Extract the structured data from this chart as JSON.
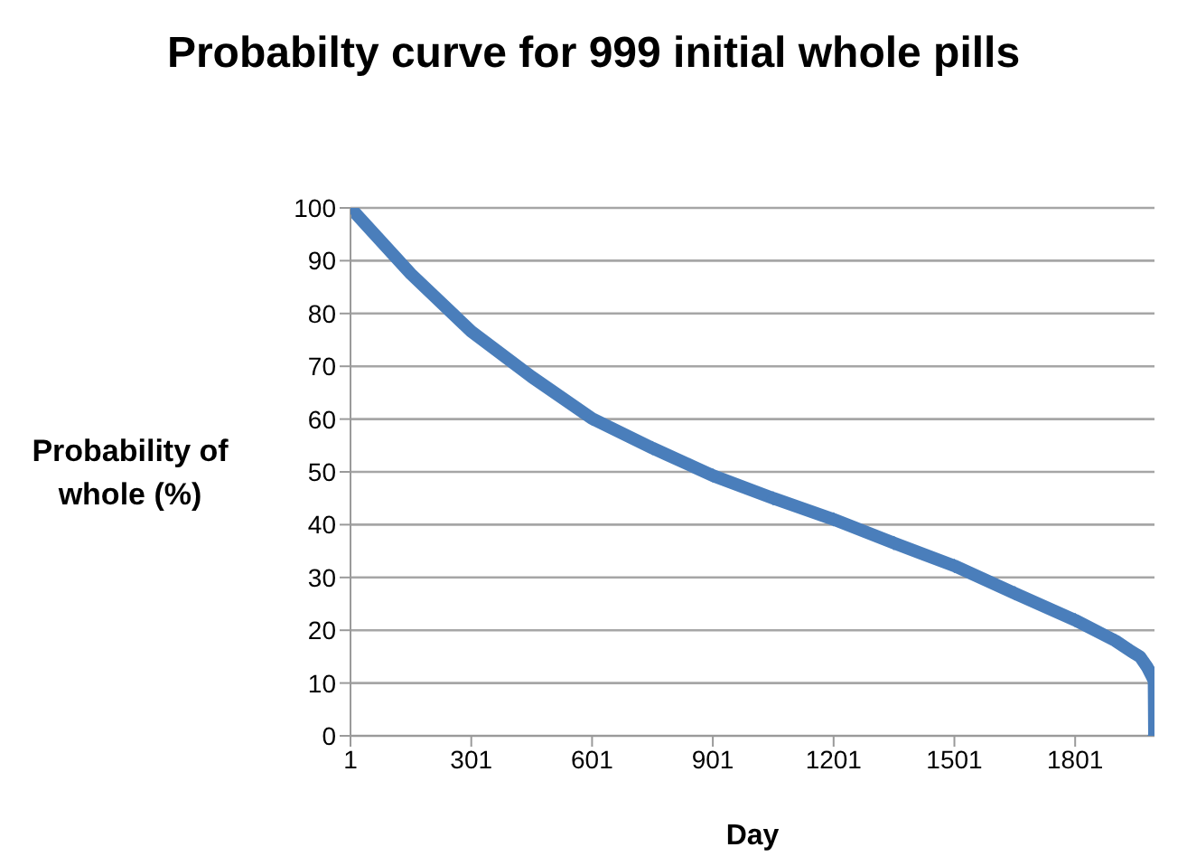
{
  "chart_data": {
    "type": "line",
    "title": "Probabilty curve for 999 initial whole pills",
    "xlabel": "Day",
    "ylabel": "Probability of whole (%)",
    "x": [
      1,
      151,
      301,
      451,
      601,
      751,
      901,
      1051,
      1201,
      1351,
      1501,
      1651,
      1801,
      1901,
      1940,
      1962,
      1980,
      1997,
      1998
    ],
    "series": [
      {
        "color": "#4a7ebb",
        "values": [
          100,
          87.5,
          76.6,
          68,
          60.1,
          54.5,
          49.3,
          45,
          41,
          36.5,
          32.2,
          27,
          21.9,
          18,
          16,
          15,
          13,
          10.5,
          0
        ]
      }
    ],
    "xlim": [
      1,
      1998
    ],
    "xticks": [
      1,
      301,
      601,
      901,
      1201,
      1501,
      1801
    ],
    "ylim": [
      0,
      100
    ],
    "yticks": [
      0,
      10,
      20,
      30,
      40,
      50,
      60,
      70,
      80,
      90,
      100
    ],
    "grid": "y",
    "marker": "diamond",
    "line_style": "solid"
  }
}
